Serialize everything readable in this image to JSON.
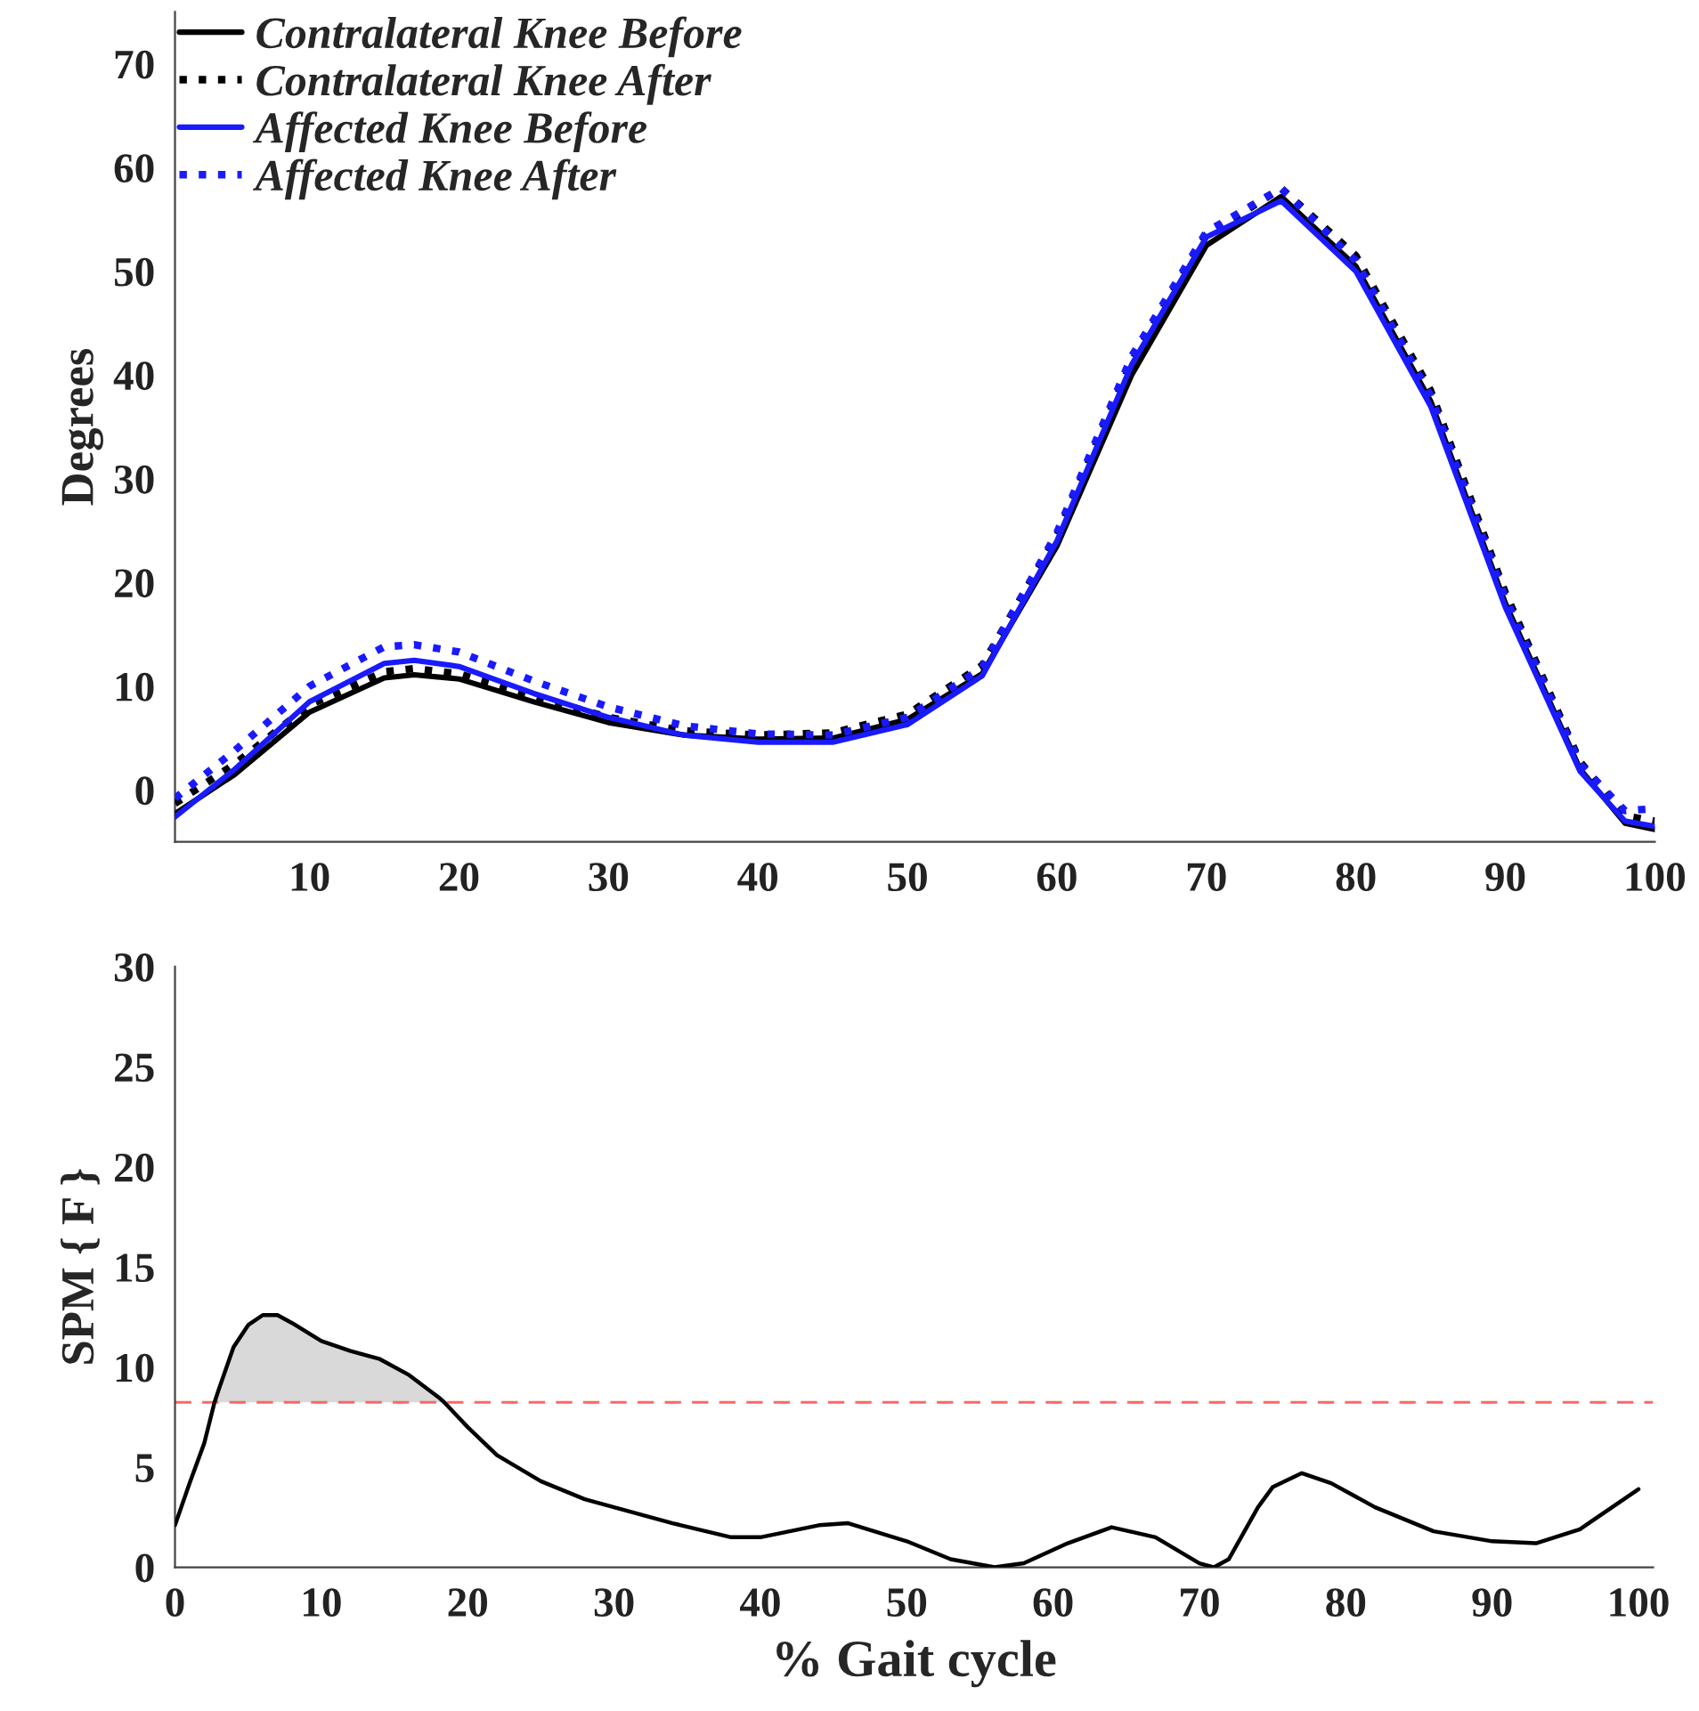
{
  "chart_data": [
    {
      "type": "line",
      "ylabel": "Degrees",
      "xlim": [
        1,
        100
      ],
      "ylim": [
        -5,
        75
      ],
      "xticks": [
        10,
        20,
        30,
        40,
        50,
        60,
        70,
        80,
        90,
        100
      ],
      "yticks": [
        0,
        10,
        20,
        30,
        40,
        50,
        60,
        70
      ],
      "x": [
        1,
        5,
        10,
        15,
        17,
        20,
        25,
        30,
        35,
        40,
        45,
        50,
        55,
        60,
        65,
        70,
        75,
        80,
        85,
        90,
        95,
        98,
        100
      ],
      "legend": "top left",
      "grid": false,
      "series": [
        {
          "name": "Contralateral Knee Before",
          "color": "#000000",
          "line_style": "solid",
          "values": [
            -2.3,
            1.5,
            7.5,
            10.8,
            11.1,
            10.7,
            8.5,
            6.5,
            5.3,
            4.9,
            5.0,
            6.8,
            11.2,
            23.5,
            40,
            52.5,
            57.2,
            50.5,
            37.5,
            18,
            2,
            -3.2,
            -3.8
          ]
        },
        {
          "name": "Contralateral Knee After",
          "color": "#000000",
          "line_style": "dotted",
          "values": [
            -1.3,
            2.5,
            8.2,
            11.4,
            11.7,
            11.2,
            9,
            7,
            5.7,
            5.3,
            5.5,
            7.3,
            12,
            24.5,
            41.3,
            53.5,
            58,
            51.5,
            38.5,
            19,
            2.7,
            -2.5,
            -3
          ]
        },
        {
          "name": "Affected Knee Before",
          "color": "#1a1aff",
          "line_style": "solid",
          "values": [
            -2.6,
            2,
            8.5,
            12.2,
            12.5,
            11.9,
            9.3,
            7,
            5.3,
            4.6,
            4.6,
            6.3,
            11,
            24,
            41,
            53.3,
            56.8,
            50,
            37,
            17.6,
            1.8,
            -3,
            -3.5
          ]
        },
        {
          "name": "Affected Knee After",
          "color": "#1a1aff",
          "line_style": "dotted",
          "values": [
            -0.8,
            3.8,
            10,
            13.8,
            14,
            13.3,
            10.5,
            8,
            6.2,
            5.4,
            5.3,
            7,
            11.8,
            24.8,
            41.8,
            53.8,
            58,
            51,
            38,
            18.5,
            2.5,
            -2,
            -1.8
          ]
        }
      ]
    },
    {
      "type": "line",
      "xlabel": "% Gait cycle",
      "ylabel": "SPM { F }",
      "xlim": [
        0,
        101
      ],
      "ylim": [
        0,
        30
      ],
      "xticks": [
        0,
        10,
        20,
        30,
        40,
        50,
        60,
        70,
        80,
        90,
        100
      ],
      "yticks": [
        0,
        5,
        10,
        15,
        20,
        25,
        30
      ],
      "x": [
        0,
        1,
        2,
        2.7,
        3,
        4,
        5,
        6,
        7,
        8,
        10,
        12,
        14,
        16,
        18,
        18.4,
        20,
        22,
        25,
        28,
        30,
        34,
        38,
        40,
        44,
        46,
        50,
        53,
        56,
        58,
        61,
        64,
        67,
        70,
        71,
        72,
        74,
        75,
        77,
        79,
        82,
        86,
        90,
        93,
        96,
        100
      ],
      "legend": false,
      "grid": false,
      "ref_lines": [
        {
          "axis": "y",
          "value": 8.24,
          "color": "#ff6666",
          "line_style": "dashed"
        }
      ],
      "series": [
        {
          "color": "#000000",
          "line_style": "solid",
          "values": [
            2.1,
            4.2,
            6.2,
            8.24,
            8.9,
            11,
            12.1,
            12.6,
            12.6,
            12.2,
            11.3,
            10.8,
            10.4,
            9.6,
            8.5,
            8.24,
            7,
            5.6,
            4.3,
            3.4,
            3.0,
            2.2,
            1.5,
            1.5,
            2.1,
            2.2,
            1.3,
            0.4,
            0,
            0.2,
            1.2,
            2.0,
            1.5,
            0.2,
            0,
            0.4,
            3.0,
            4.0,
            4.7,
            4.2,
            3.0,
            1.8,
            1.3,
            1.2,
            1.9,
            3.9
          ],
          "lower": [
            null,
            null,
            null,
            8.24,
            8.24,
            8.24,
            8.24,
            8.24,
            8.24,
            8.24,
            8.24,
            8.24,
            8.24,
            8.24,
            8.24,
            8.24,
            null,
            null,
            null,
            null,
            null,
            null,
            null,
            null,
            null,
            null,
            null,
            null,
            null,
            null,
            null,
            null,
            null,
            null,
            null,
            null,
            null,
            null,
            null,
            null,
            null,
            null,
            null,
            null,
            null,
            null
          ],
          "upper": [
            null,
            null,
            null,
            8.24,
            8.9,
            11,
            12.1,
            12.6,
            12.6,
            12.2,
            11.3,
            10.8,
            10.4,
            9.6,
            8.5,
            8.24,
            null,
            null,
            null,
            null,
            null,
            null,
            null,
            null,
            null,
            null,
            null,
            null,
            null,
            null,
            null,
            null,
            null,
            null,
            null,
            null,
            null,
            null,
            null,
            null,
            null,
            null,
            null,
            null,
            null,
            null
          ]
        }
      ]
    }
  ]
}
